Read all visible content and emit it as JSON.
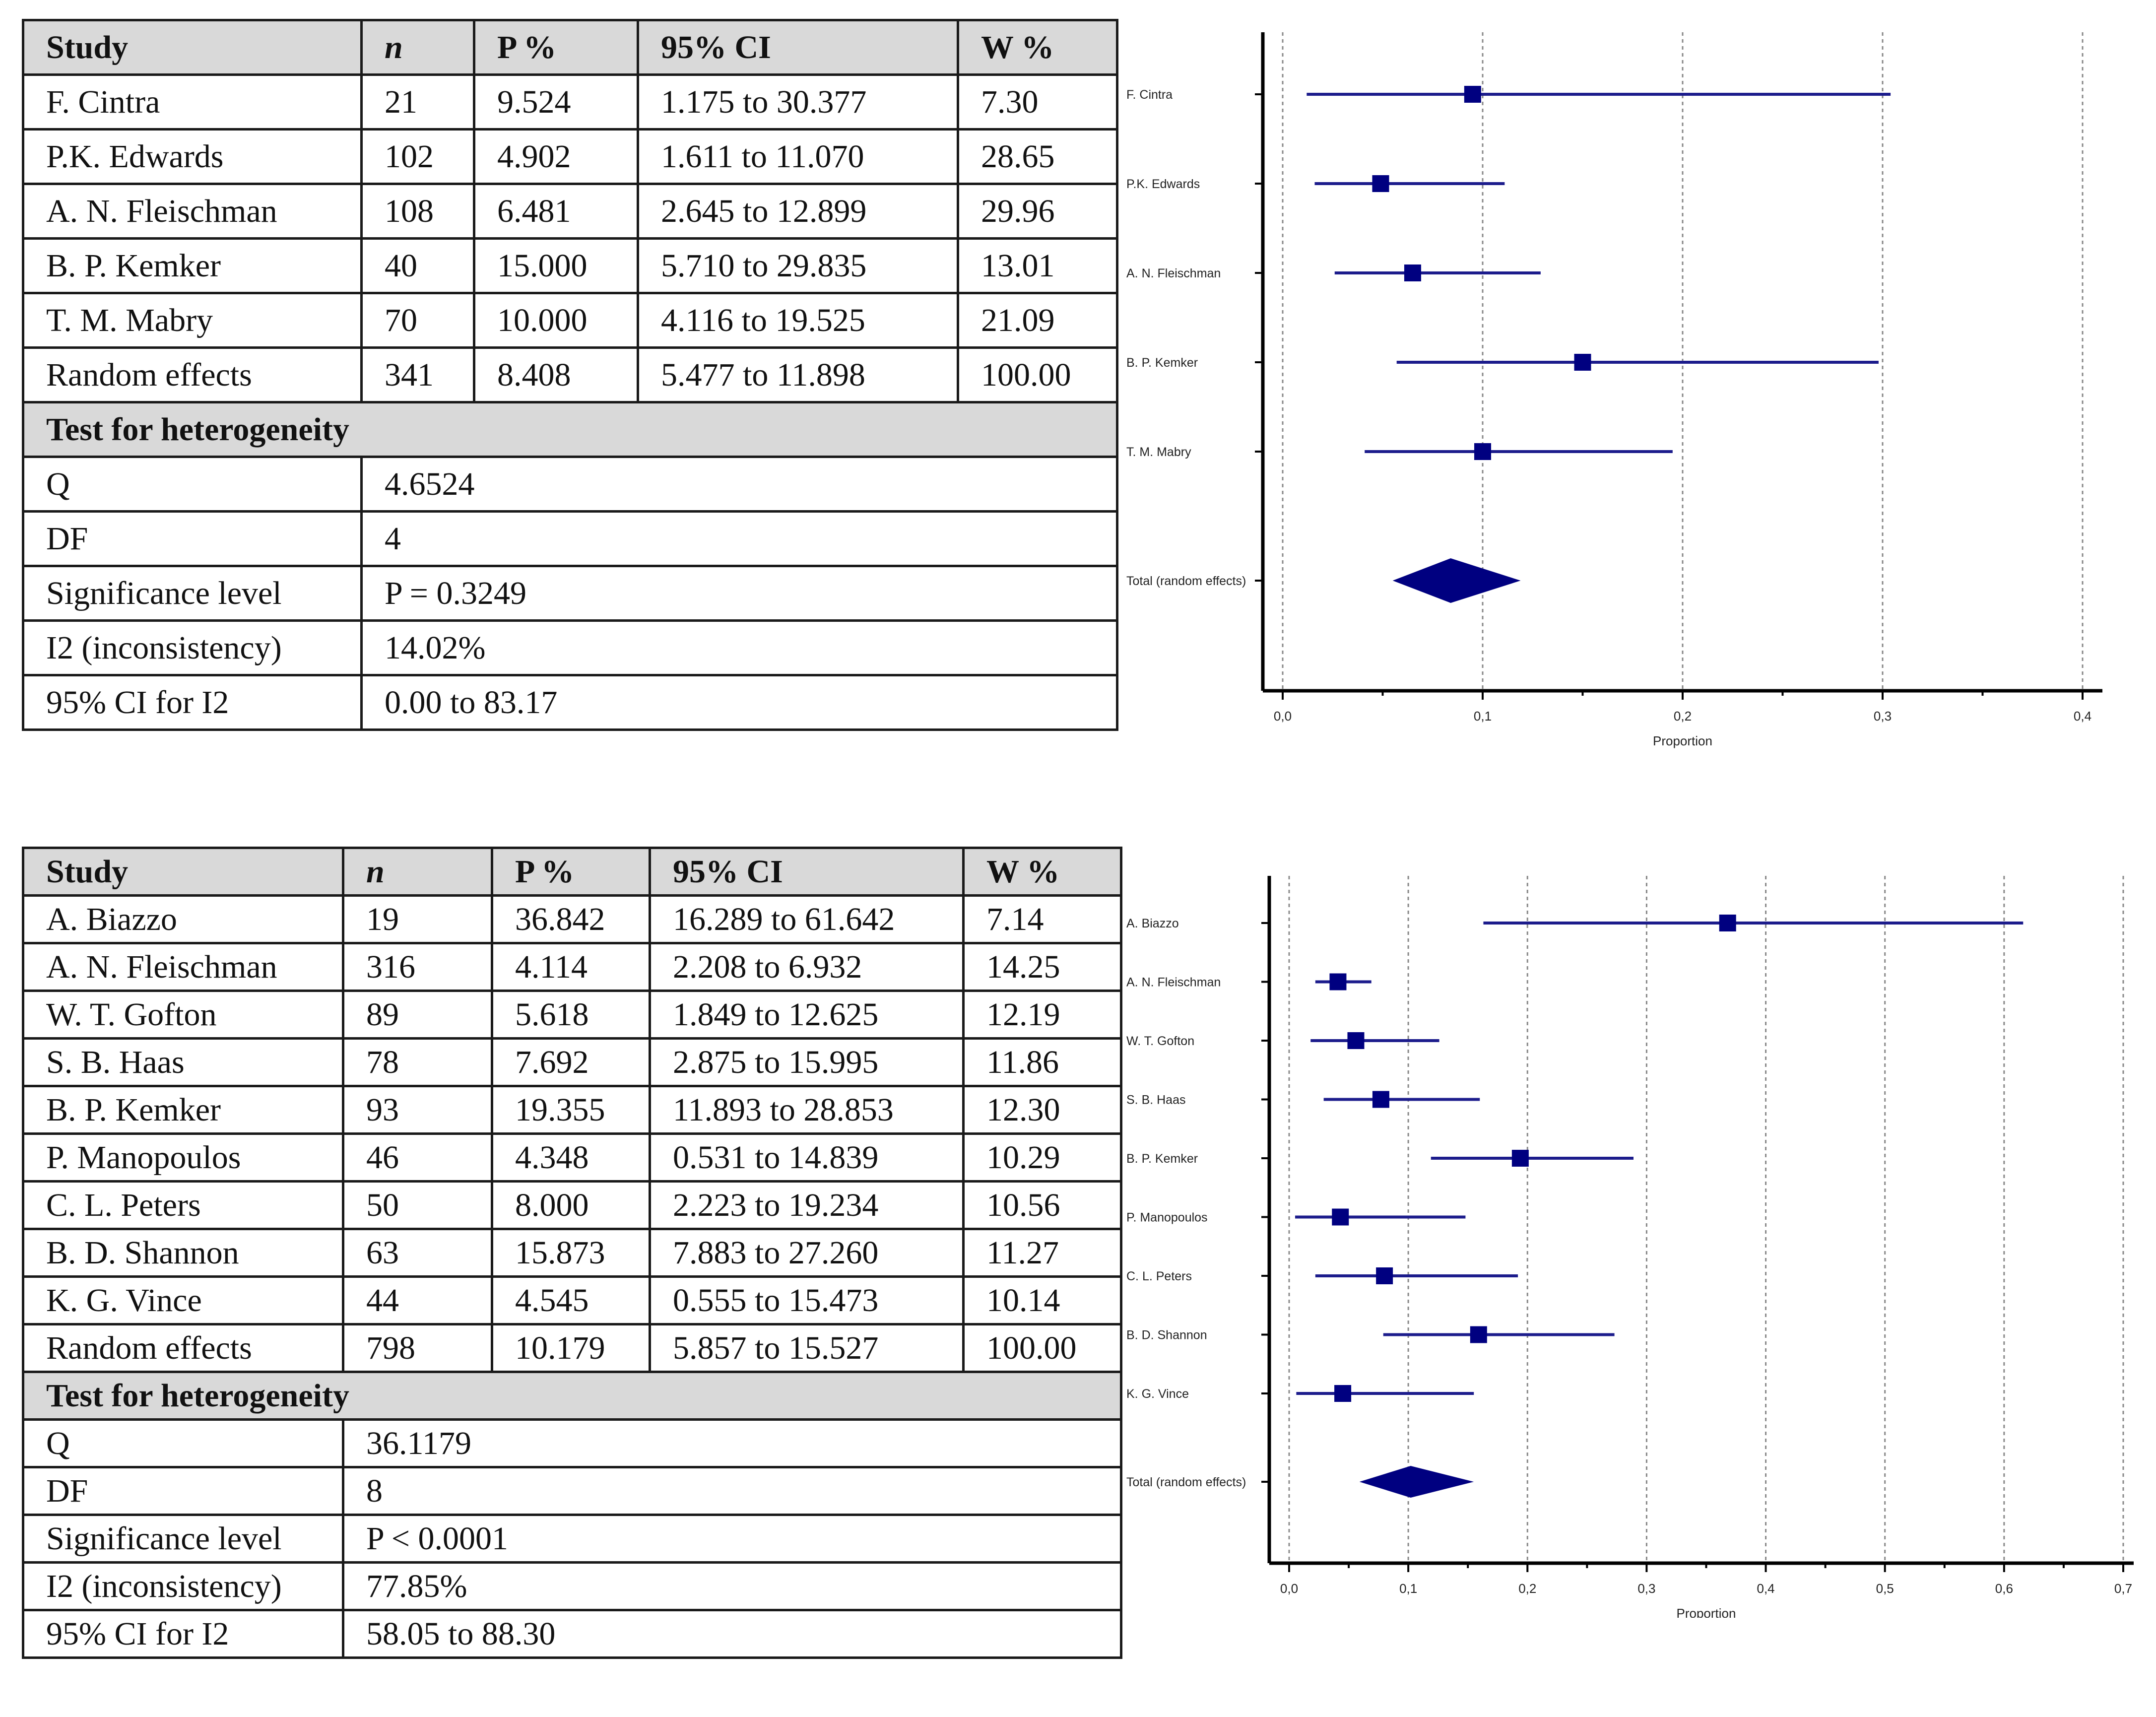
{
  "colors": {
    "marker": "#000080",
    "line": "#1c1c8c",
    "grid": "#888888",
    "border": "#1a1a1a",
    "header_bg": "#d9d9d9"
  },
  "table1": {
    "headers": [
      "Study",
      "n",
      "P %",
      "95% CI",
      "W %"
    ],
    "rows": [
      [
        "F. Cintra",
        "21",
        "9.524",
        "1.175 to 30.377",
        "7.30"
      ],
      [
        "P.K. Edwards",
        "102",
        "4.902",
        "1.611 to 11.070",
        "28.65"
      ],
      [
        "A. N. Fleischman",
        "108",
        "6.481",
        "2.645 to 12.899",
        "29.96"
      ],
      [
        "B. P. Kemker",
        "40",
        "15.000",
        "5.710 to 29.835",
        "13.01"
      ],
      [
        "T. M. Mabry",
        "70",
        "10.000",
        "4.116 to 19.525",
        "21.09"
      ],
      [
        "Random effects",
        "341",
        "8.408",
        "5.477 to 11.898",
        "100.00"
      ]
    ],
    "het_title": "Test for heterogeneity",
    "het": [
      [
        "Q",
        "4.6524"
      ],
      [
        "DF",
        "4"
      ],
      [
        "Significance level",
        "P = 0.3249"
      ],
      [
        "I2 (inconsistency)",
        "14.02%"
      ],
      [
        "95% CI for I2",
        "0.00 to 83.17"
      ]
    ]
  },
  "table2": {
    "headers": [
      "Study",
      "n",
      "P %",
      "95% CI",
      "W %"
    ],
    "rows": [
      [
        "A. Biazzo",
        "19",
        "36.842",
        "16.289 to 61.642",
        "7.14"
      ],
      [
        "A. N. Fleischman",
        "316",
        "4.114",
        "2.208 to 6.932",
        "14.25"
      ],
      [
        "W. T. Gofton",
        "89",
        "5.618",
        "1.849 to 12.625",
        "12.19"
      ],
      [
        "S. B. Haas",
        "78",
        "7.692",
        "2.875 to 15.995",
        "11.86"
      ],
      [
        "B. P. Kemker",
        "93",
        "19.355",
        "11.893 to 28.853",
        "12.30"
      ],
      [
        "P. Manopoulos",
        "46",
        "4.348",
        "0.531 to 14.839",
        "10.29"
      ],
      [
        "C. L. Peters",
        "50",
        "8.000",
        "2.223 to 19.234",
        "10.56"
      ],
      [
        "B. D. Shannon",
        "63",
        "15.873",
        "7.883 to 27.260",
        "11.27"
      ],
      [
        "K. G. Vince",
        "44",
        "4.545",
        "0.555 to 15.473",
        "10.14"
      ],
      [
        "Random effects",
        "798",
        "10.179",
        "5.857 to 15.527",
        "100.00"
      ]
    ],
    "het_title": "Test for heterogeneity",
    "het": [
      [
        "Q",
        "36.1179"
      ],
      [
        "DF",
        "8"
      ],
      [
        "Significance level",
        "P < 0.0001"
      ],
      [
        "I2 (inconsistency)",
        "77.85%"
      ],
      [
        "95% CI for I2",
        "58.05 to 88.30"
      ]
    ]
  },
  "chart_data": [
    {
      "type": "forest",
      "xlabel": "Proportion",
      "xlim": [
        0,
        0.4
      ],
      "xticks": [
        0,
        0.1,
        0.2,
        0.3,
        0.4
      ],
      "xtick_labels": [
        "0,0",
        "0,1",
        "0,2",
        "0,3",
        "0,4"
      ],
      "studies": [
        {
          "label": "F. Cintra",
          "est": 0.095,
          "lo": 0.012,
          "hi": 0.304
        },
        {
          "label": "P.K. Edwards",
          "est": 0.049,
          "lo": 0.016,
          "hi": 0.111
        },
        {
          "label": "A. N. Fleischman",
          "est": 0.065,
          "lo": 0.026,
          "hi": 0.129
        },
        {
          "label": "B. P. Kemker",
          "est": 0.15,
          "lo": 0.057,
          "hi": 0.298
        },
        {
          "label": "T. M. Mabry",
          "est": 0.1,
          "lo": 0.041,
          "hi": 0.195
        }
      ],
      "total": {
        "label": "Total (random effects)",
        "est": 0.084,
        "lo": 0.055,
        "hi": 0.119
      }
    },
    {
      "type": "forest",
      "xlabel": "Proportion",
      "xlim": [
        0,
        0.7
      ],
      "xticks": [
        0,
        0.1,
        0.2,
        0.3,
        0.4,
        0.5,
        0.6,
        0.7
      ],
      "xtick_labels": [
        "0,0",
        "0,1",
        "0,2",
        "0,3",
        "0,4",
        "0,5",
        "0,6",
        "0,7"
      ],
      "studies": [
        {
          "label": "A. Biazzo",
          "est": 0.368,
          "lo": 0.163,
          "hi": 0.616
        },
        {
          "label": "A. N. Fleischman",
          "est": 0.041,
          "lo": 0.022,
          "hi": 0.069
        },
        {
          "label": "W. T. Gofton",
          "est": 0.056,
          "lo": 0.018,
          "hi": 0.126
        },
        {
          "label": "S. B. Haas",
          "est": 0.077,
          "lo": 0.029,
          "hi": 0.16
        },
        {
          "label": "B. P. Kemker",
          "est": 0.194,
          "lo": 0.119,
          "hi": 0.289
        },
        {
          "label": "P. Manopoulos",
          "est": 0.043,
          "lo": 0.005,
          "hi": 0.148
        },
        {
          "label": "C. L. Peters",
          "est": 0.08,
          "lo": 0.022,
          "hi": 0.192
        },
        {
          "label": "B. D. Shannon",
          "est": 0.159,
          "lo": 0.079,
          "hi": 0.273
        },
        {
          "label": "K. G. Vince",
          "est": 0.045,
          "lo": 0.006,
          "hi": 0.155
        }
      ],
      "total": {
        "label": "Total (random effects)",
        "est": 0.102,
        "lo": 0.059,
        "hi": 0.155
      }
    }
  ]
}
